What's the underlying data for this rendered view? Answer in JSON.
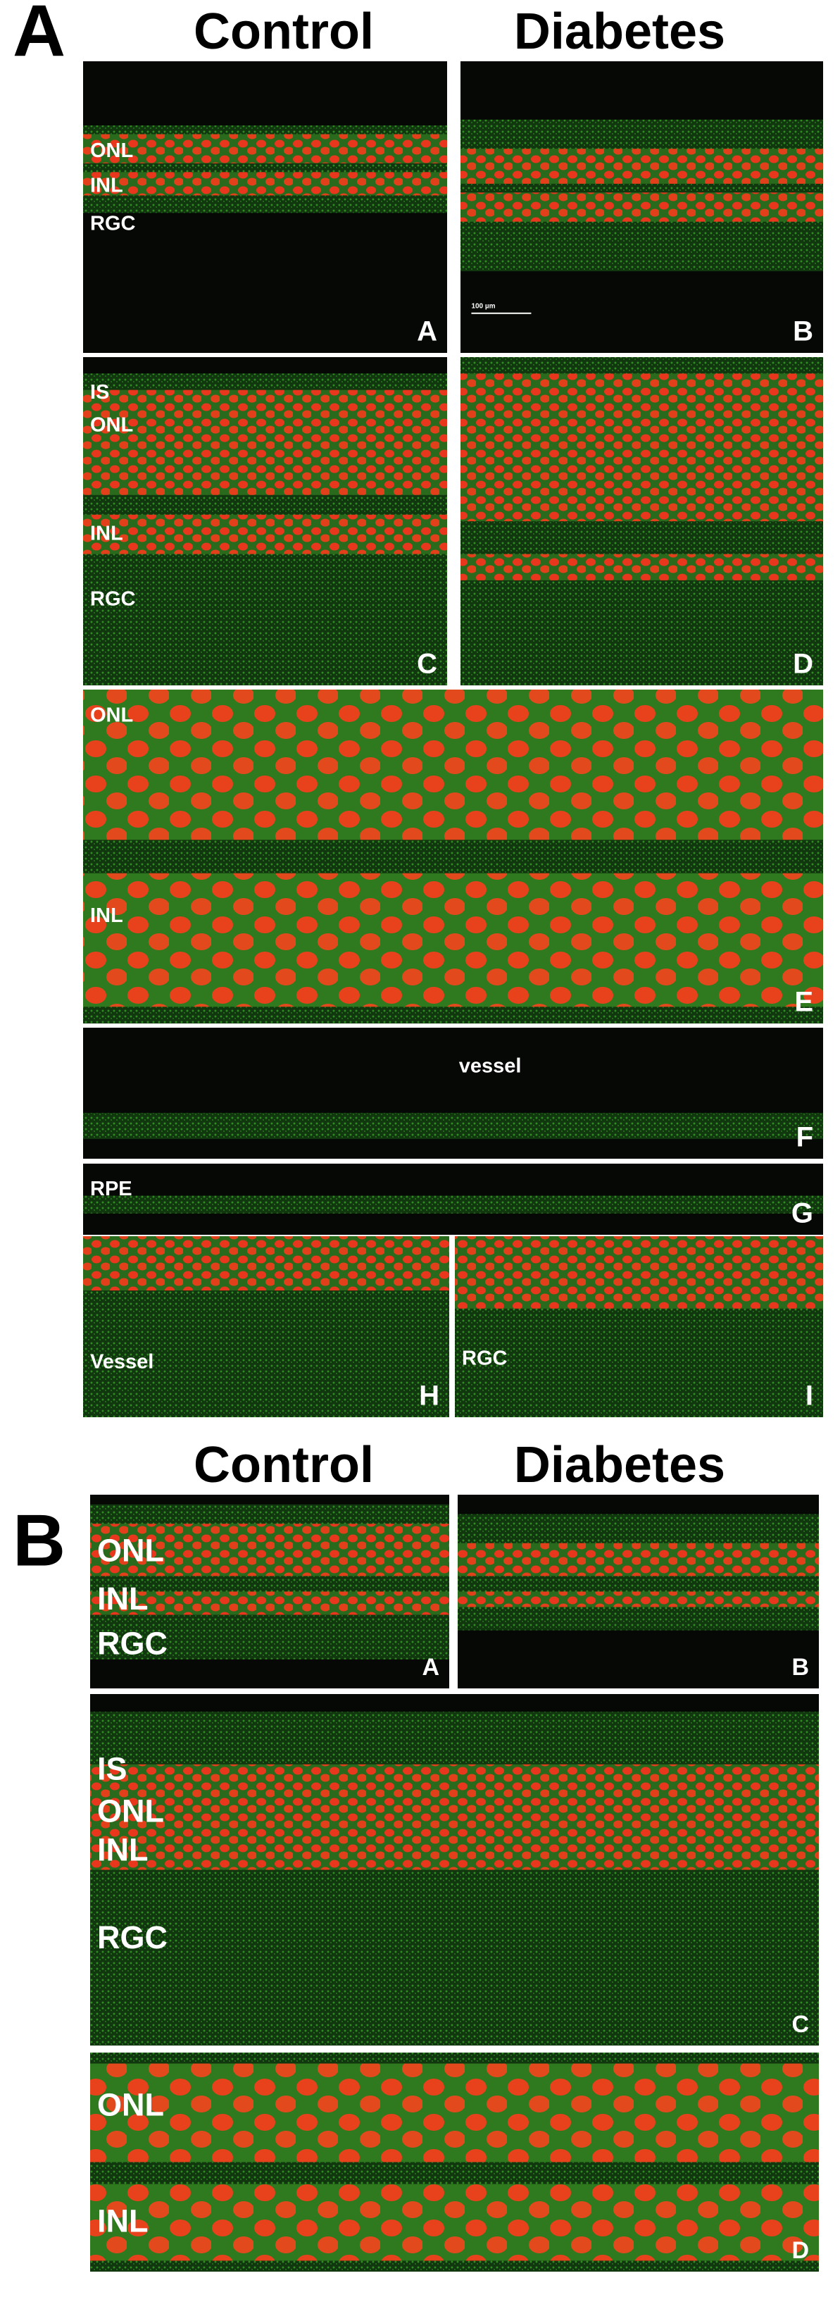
{
  "sections": [
    {
      "letter": "A",
      "headers": [
        "Control",
        "Diabetes"
      ],
      "panels": [
        {
          "label": "A",
          "annotations": [
            "ONL",
            "INL",
            "RGC"
          ]
        },
        {
          "label": "B",
          "annotations": [
            "100 µm"
          ]
        },
        {
          "label": "C",
          "annotations": [
            "IS",
            "ONL",
            "INL",
            "RGC"
          ]
        },
        {
          "label": "D",
          "annotations": []
        },
        {
          "label": "E",
          "annotations": [
            "ONL",
            "INL"
          ]
        },
        {
          "label": "F",
          "annotations": [
            "vessel"
          ]
        },
        {
          "label": "G",
          "annotations": [
            "RPE"
          ]
        },
        {
          "label": "H",
          "annotations": [
            "Vessel"
          ]
        },
        {
          "label": "I",
          "annotations": [
            "RGC"
          ]
        }
      ]
    },
    {
      "letter": "B",
      "headers": [
        "Control",
        "Diabetes"
      ],
      "panels": [
        {
          "label": "A",
          "annotations": [
            "ONL",
            "INL",
            "RGC"
          ]
        },
        {
          "label": "B",
          "annotations": []
        },
        {
          "label": "C",
          "annotations": [
            "IS",
            "ONL",
            "INL",
            "RGC"
          ]
        },
        {
          "label": "D",
          "annotations": [
            "ONL",
            "INL"
          ]
        }
      ]
    }
  ]
}
